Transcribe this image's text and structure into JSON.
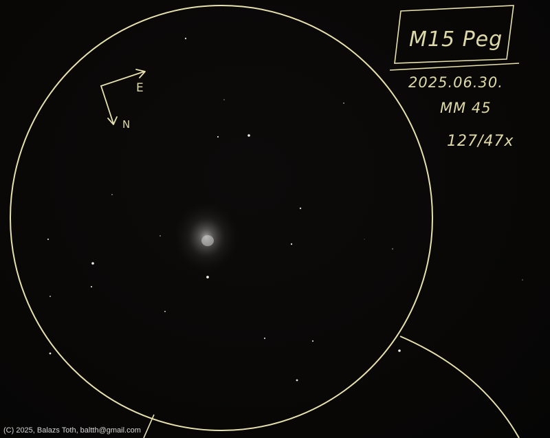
{
  "sketch": {
    "object_label": "M15 Peg",
    "date": "2025.06.30.",
    "observer_code": "MM 45",
    "scope_magnification": "127/47x",
    "compass": {
      "east_label": "E",
      "north_label": "N"
    }
  },
  "credit": "(C) 2025, Balazs Toth, baltth@gmail.com",
  "colors": {
    "background": "#080706",
    "pencil_line": "#e8e3b0",
    "star": "#f2efe6"
  }
}
